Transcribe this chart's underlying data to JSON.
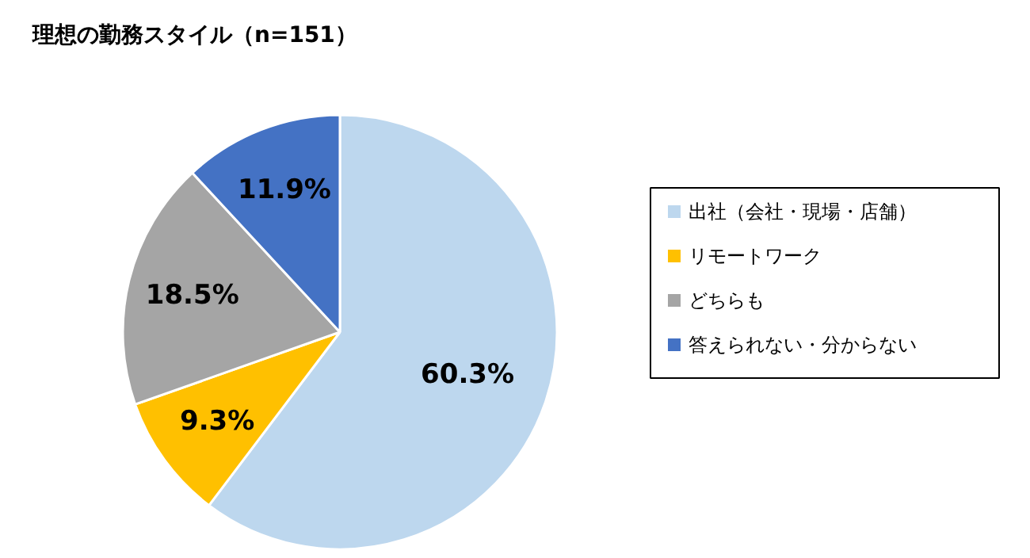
{
  "chart_data": {
    "type": "pie",
    "title": "理想の勤務スタイル（n=151）",
    "categories": [
      "出社（会社・現場・店舗）",
      "リモートワーク",
      "どちらも",
      "答えられない・分からない"
    ],
    "values": [
      60.3,
      9.3,
      18.5,
      11.9
    ],
    "colors": [
      "#bdd7ee",
      "#ffc000",
      "#a5a5a5",
      "#4472c4"
    ],
    "value_labels": [
      "60.3%",
      "9.3%",
      "18.5%",
      "11.9%"
    ],
    "legend": "right"
  }
}
